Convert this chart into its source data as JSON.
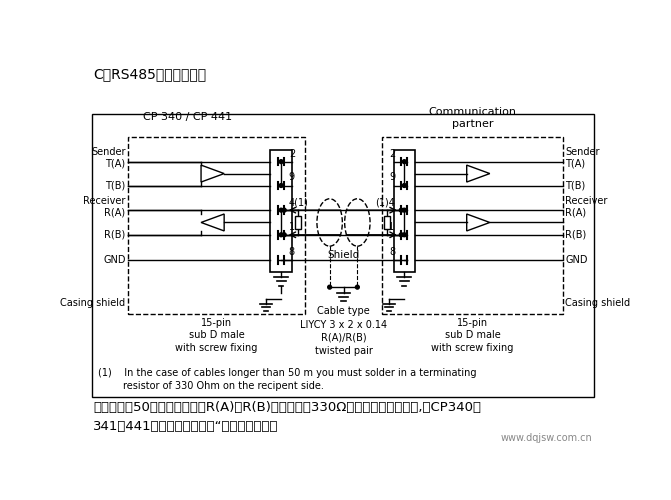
{
  "title": "C：RS485的连接定义：",
  "bg_color": "#ffffff",
  "left_box_label": "CP 340 / CP 441",
  "right_box_label": "Communication\npartner",
  "bottom_text_line1": "电缆长度赗50米时在接收端（R(A)和R(B)之间）加入330Ω电阶。如果接线错误,在CP340、",
  "bottom_text_line2": "341、441硬件诊断中会提出“端口：接收线断",
  "watermark": "www.dqjsw.com.cn",
  "footnote": "(1)    In the case of cables longer than 50 m you must solder in a terminating\n        resistor of 330 Ohm on the recipent side.",
  "left_connector_label": "15-pin\nsub D male\nwith screw fixing",
  "right_connector_label": "15-pin\nsub D male\nwith screw fixing",
  "cable_label": "Cable type\nLIYCY 3 x 2 x 0.14\nR(A)/R(B)\ntwisted pair"
}
